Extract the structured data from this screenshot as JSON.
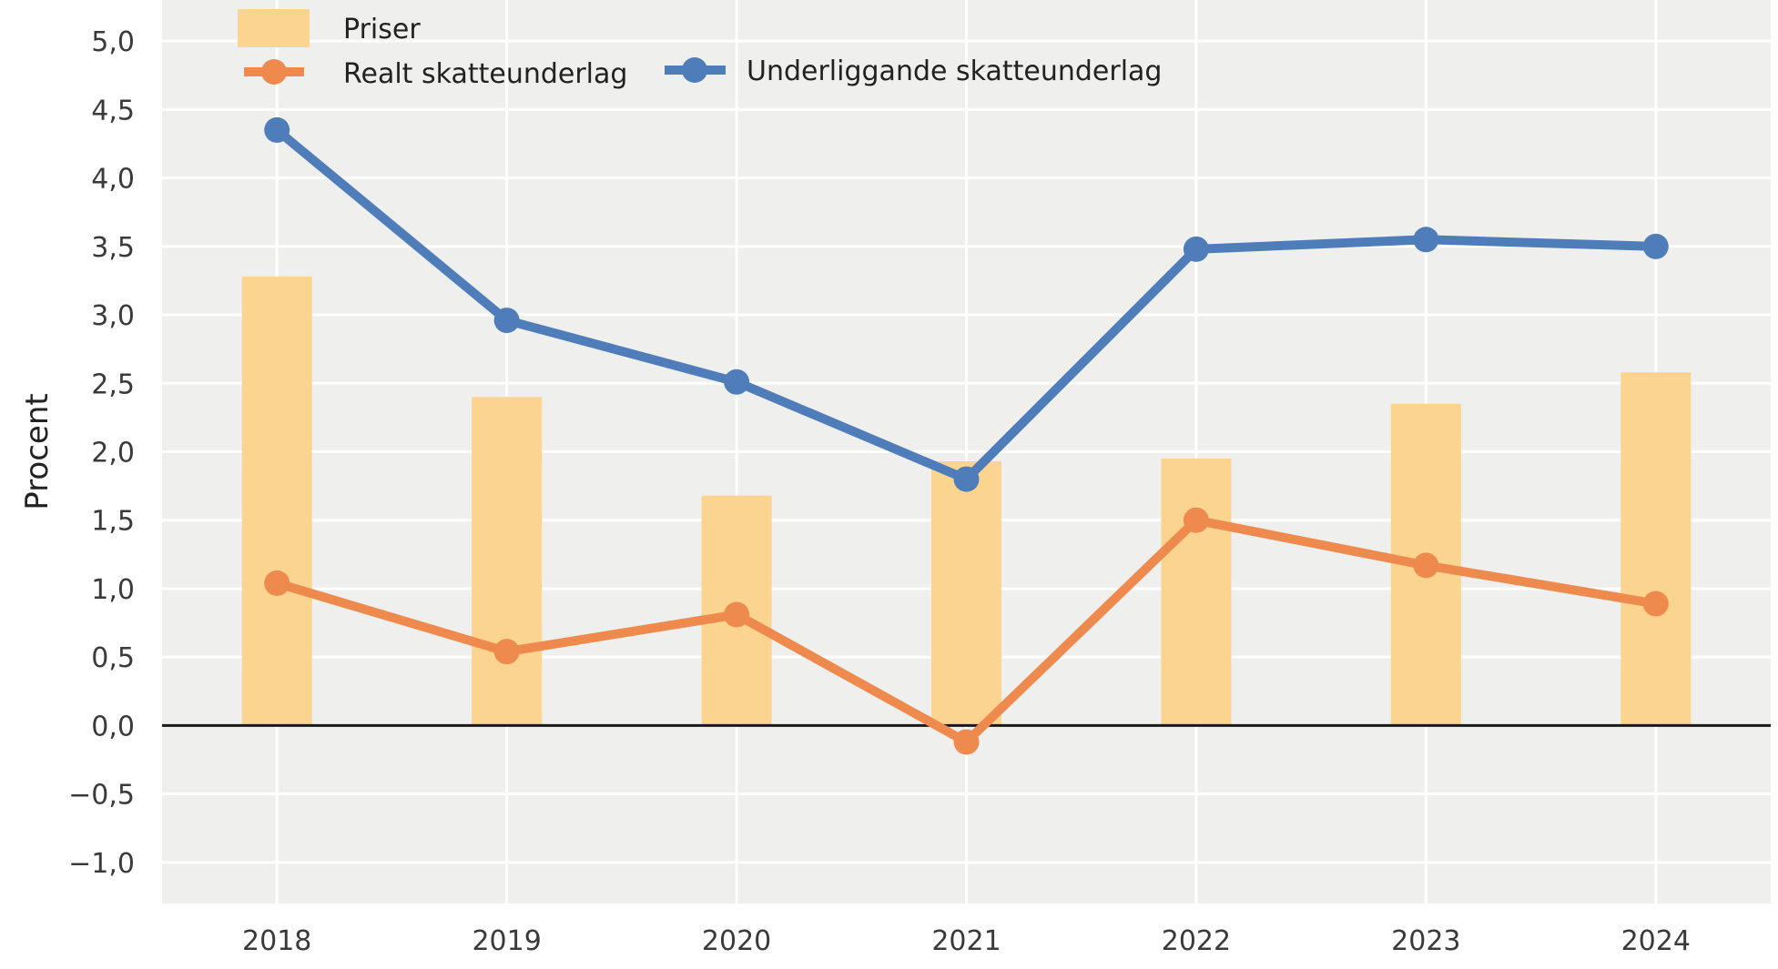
{
  "chart_data": {
    "type": "bar",
    "categories": [
      "2018",
      "2019",
      "2020",
      "2021",
      "2022",
      "2023",
      "2024"
    ],
    "series": [
      {
        "name": "Priser",
        "type": "bar",
        "color": "#FBD48F",
        "values": [
          3.28,
          2.4,
          1.68,
          1.93,
          1.95,
          2.35,
          2.58
        ]
      },
      {
        "name": "Realt skatteunderlag",
        "type": "line",
        "color": "#EF8A4E",
        "values": [
          1.04,
          0.54,
          0.81,
          -0.12,
          1.5,
          1.17,
          0.89
        ]
      },
      {
        "name": "Underliggande skatteunderlag",
        "type": "line",
        "color": "#4F7DBA",
        "values": [
          4.35,
          2.96,
          2.51,
          1.8,
          3.48,
          3.55,
          3.5
        ]
      }
    ],
    "ylabel": "Procent",
    "xlabel": "",
    "ylim": [
      -1.3,
      5.3
    ],
    "yticks": [
      5.0,
      4.5,
      4.0,
      3.5,
      3.0,
      2.5,
      2.0,
      1.5,
      1.0,
      0.5,
      0.0,
      -0.5,
      -1.0
    ],
    "ytick_labels": [
      "5,0",
      "4,5",
      "4,0",
      "3,5",
      "3,0",
      "2,5",
      "2,0",
      "1,5",
      "1,0",
      "0,5",
      "0,0",
      "−0,5",
      "−1,0"
    ],
    "grid": true,
    "legend_position": "top-left",
    "plot_background": "#EFEFED"
  }
}
